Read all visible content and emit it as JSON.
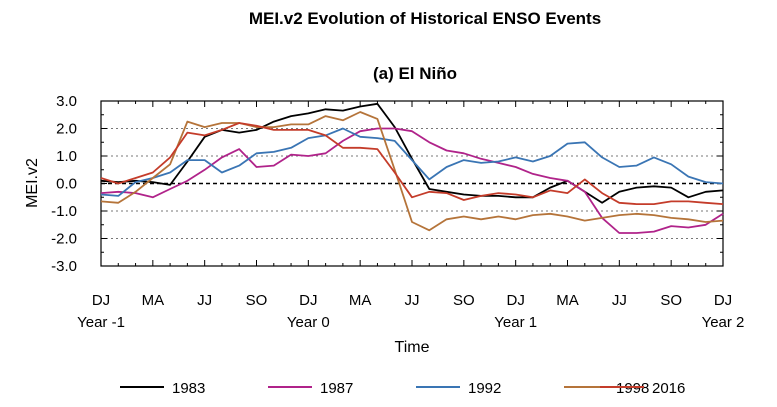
{
  "chart_data": {
    "type": "line",
    "title": "MEI.v2 Evolution of Historical ENSO Events",
    "subtitle": "(a) El Niño",
    "xlabel": "Time",
    "ylabel": "MEI.v2",
    "ylim": [
      -3.0,
      3.0
    ],
    "yticks": [
      "3.0",
      "2.0",
      "1.0",
      "0.0",
      "-1.0",
      "-2.0",
      "-3.0"
    ],
    "ytick_values": [
      3,
      2,
      1,
      0,
      -1,
      -2,
      -3
    ],
    "x": [
      0,
      1,
      2,
      3,
      4,
      5,
      6,
      7,
      8,
      9,
      10,
      11,
      12,
      13,
      14,
      15,
      16,
      17,
      18,
      19,
      20,
      21,
      22,
      23,
      24,
      25,
      26,
      27,
      28,
      29,
      30,
      31,
      32,
      33,
      34,
      35,
      36
    ],
    "xticks": [
      {
        "x": 0,
        "label": "DJ",
        "sub": "Year -1"
      },
      {
        "x": 3,
        "label": "MA",
        "sub": ""
      },
      {
        "x": 6,
        "label": "JJ",
        "sub": ""
      },
      {
        "x": 9,
        "label": "SO",
        "sub": ""
      },
      {
        "x": 12,
        "label": "DJ",
        "sub": "Year 0"
      },
      {
        "x": 15,
        "label": "MA",
        "sub": ""
      },
      {
        "x": 18,
        "label": "JJ",
        "sub": ""
      },
      {
        "x": 21,
        "label": "SO",
        "sub": ""
      },
      {
        "x": 24,
        "label": "DJ",
        "sub": "Year 1"
      },
      {
        "x": 27,
        "label": "MA",
        "sub": ""
      },
      {
        "x": 30,
        "label": "JJ",
        "sub": ""
      },
      {
        "x": 33,
        "label": "SO",
        "sub": ""
      },
      {
        "x": 36,
        "label": "DJ",
        "sub": "Year 2"
      }
    ],
    "grid_dashed": [
      2,
      1,
      -1,
      -2
    ],
    "zero_line": true,
    "legend_placement": "bottom",
    "series": [
      {
        "name": "1983",
        "color": "#000000",
        "values": [
          0.1,
          0.05,
          0.1,
          0.05,
          -0.05,
          0.8,
          1.7,
          1.95,
          1.85,
          1.95,
          2.25,
          2.45,
          2.55,
          2.7,
          2.65,
          2.8,
          2.9,
          2.05,
          0.9,
          -0.2,
          -0.3,
          -0.4,
          -0.45,
          -0.45,
          -0.5,
          -0.5,
          -0.15,
          0.1,
          -0.3,
          -0.7,
          -0.3,
          -0.15,
          -0.1,
          -0.15,
          -0.5,
          -0.3,
          -0.25
        ]
      },
      {
        "name": "1987",
        "color": "#b0238a",
        "values": [
          -0.35,
          -0.3,
          -0.35,
          -0.5,
          -0.2,
          0.1,
          0.5,
          0.95,
          1.25,
          0.6,
          0.65,
          1.05,
          1.0,
          1.1,
          1.55,
          1.9,
          2.0,
          2.0,
          1.9,
          1.5,
          1.2,
          1.1,
          0.9,
          0.75,
          0.6,
          0.35,
          0.2,
          0.1,
          -0.3,
          -1.25,
          -1.8,
          -1.8,
          -1.75,
          -1.55,
          -1.6,
          -1.5,
          -1.1
        ]
      },
      {
        "name": "1992",
        "color": "#3a75b4",
        "values": [
          -0.4,
          -0.45,
          0.05,
          0.2,
          0.4,
          0.85,
          0.85,
          0.4,
          0.65,
          1.1,
          1.15,
          1.3,
          1.65,
          1.75,
          2.0,
          1.7,
          1.65,
          1.55,
          0.85,
          0.15,
          0.6,
          0.85,
          0.75,
          0.8,
          0.95,
          0.8,
          1.0,
          1.45,
          1.5,
          0.95,
          0.6,
          0.65,
          0.95,
          0.7,
          0.25,
          0.05,
          0.0
        ]
      },
      {
        "name": "1998",
        "color": "#b5743a",
        "values": [
          -0.65,
          -0.7,
          -0.3,
          0.2,
          0.7,
          2.25,
          2.05,
          2.2,
          2.2,
          2.05,
          2.05,
          2.15,
          2.15,
          2.45,
          2.3,
          2.6,
          2.35,
          0.5,
          -1.4,
          -1.7,
          -1.3,
          -1.2,
          -1.3,
          -1.2,
          -1.3,
          -1.15,
          -1.1,
          -1.2,
          -1.35,
          -1.25,
          -1.15,
          -1.1,
          -1.15,
          -1.25,
          -1.3,
          -1.4,
          -1.35
        ]
      },
      {
        "name": "2016",
        "color": "#c43c2a",
        "values": [
          0.2,
          0.0,
          0.2,
          0.4,
          0.95,
          1.85,
          1.75,
          1.95,
          2.2,
          2.1,
          1.95,
          1.95,
          1.95,
          1.75,
          1.3,
          1.3,
          1.25,
          0.4,
          -0.5,
          -0.3,
          -0.35,
          -0.6,
          -0.45,
          -0.35,
          -0.4,
          -0.5,
          -0.25,
          -0.35,
          0.15,
          -0.35,
          -0.7,
          -0.75,
          -0.75,
          -0.65,
          -0.65,
          -0.7,
          -0.75
        ]
      }
    ]
  }
}
